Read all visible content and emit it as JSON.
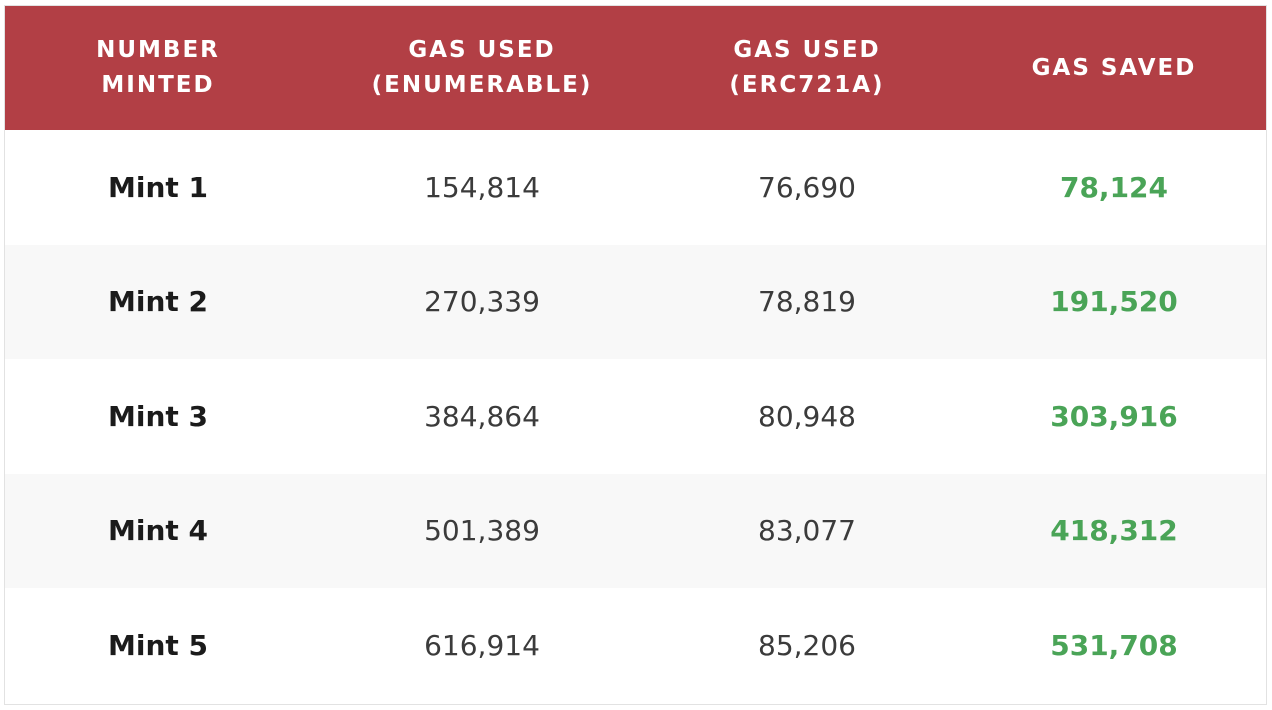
{
  "table": {
    "header": [
      [
        "NUMBER",
        "MINTED"
      ],
      [
        "GAS USED",
        "(ENUMERABLE)"
      ],
      [
        "GAS USED",
        "(ERC721A)"
      ],
      [
        "GAS SAVED"
      ]
    ],
    "rows": [
      [
        "Mint 1",
        "154,814",
        "76,690",
        "78,124"
      ],
      [
        "Mint 2",
        "270,339",
        "78,819",
        "191,520"
      ],
      [
        "Mint 3",
        "384,864",
        "80,948",
        "303,916"
      ],
      [
        "Mint 4",
        "501,389",
        "83,077",
        "418,312"
      ],
      [
        "Mint 5",
        "616,914",
        "85,206",
        "531,708"
      ]
    ]
  }
}
